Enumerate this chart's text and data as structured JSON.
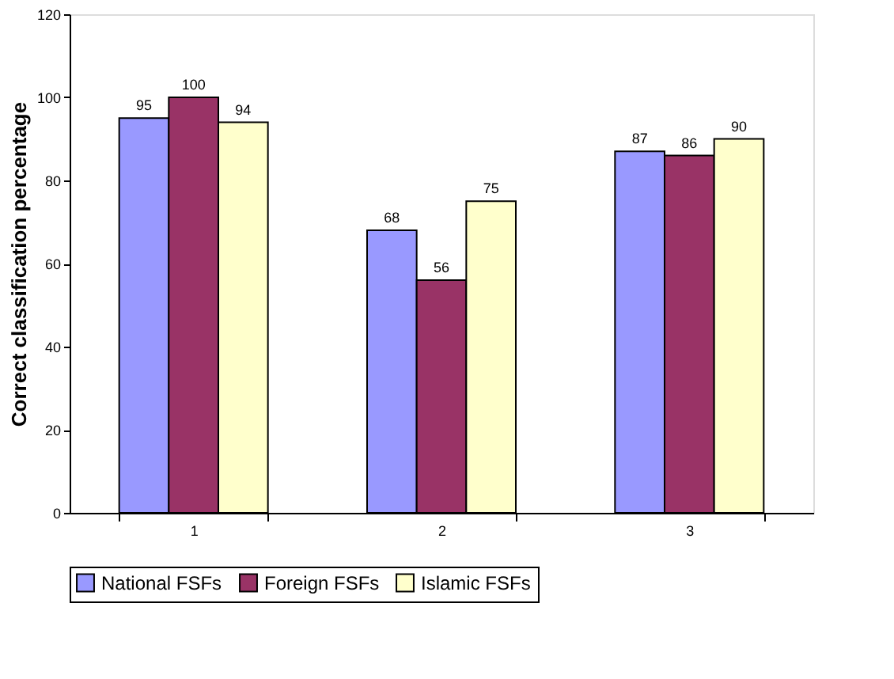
{
  "chart_data": {
    "type": "bar",
    "ylabel": "Correct classification percentage",
    "categories": [
      "1",
      "2",
      "3"
    ],
    "series": [
      {
        "name": "National FSFs",
        "color": "#9999ff",
        "values": [
          95,
          68,
          87
        ]
      },
      {
        "name": "Foreign FSFs",
        "color": "#993366",
        "values": [
          100,
          56,
          86
        ]
      },
      {
        "name": "Islamic FSFs",
        "color": "#ffffcc",
        "values": [
          94,
          75,
          90
        ]
      }
    ],
    "ylim": [
      0,
      120
    ],
    "yticks": [
      0,
      20,
      40,
      60,
      80,
      100,
      120
    ],
    "grid": false,
    "legend": "bottom",
    "data_labels": true
  }
}
